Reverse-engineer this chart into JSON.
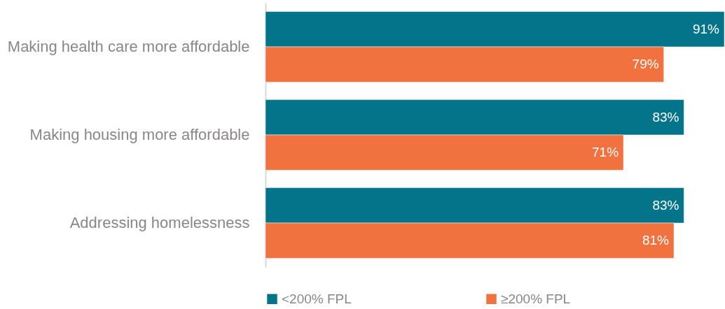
{
  "chart_data": {
    "type": "bar",
    "orientation": "horizontal",
    "categories": [
      "Making health care more affordable",
      "Making housing more affordable",
      "Addressing homelessness"
    ],
    "series": [
      {
        "name": "<200% FPL",
        "color": "#04748a",
        "values": [
          91,
          83,
          83
        ],
        "value_labels": [
          "91%",
          "83%",
          "83%"
        ]
      },
      {
        "name": "≥200% FPL",
        "color": "#f2723f",
        "values": [
          79,
          71,
          81
        ],
        "value_labels": [
          "79%",
          "71%",
          "81%"
        ]
      }
    ],
    "legend": "bottom",
    "tick_labels": "y"
  }
}
